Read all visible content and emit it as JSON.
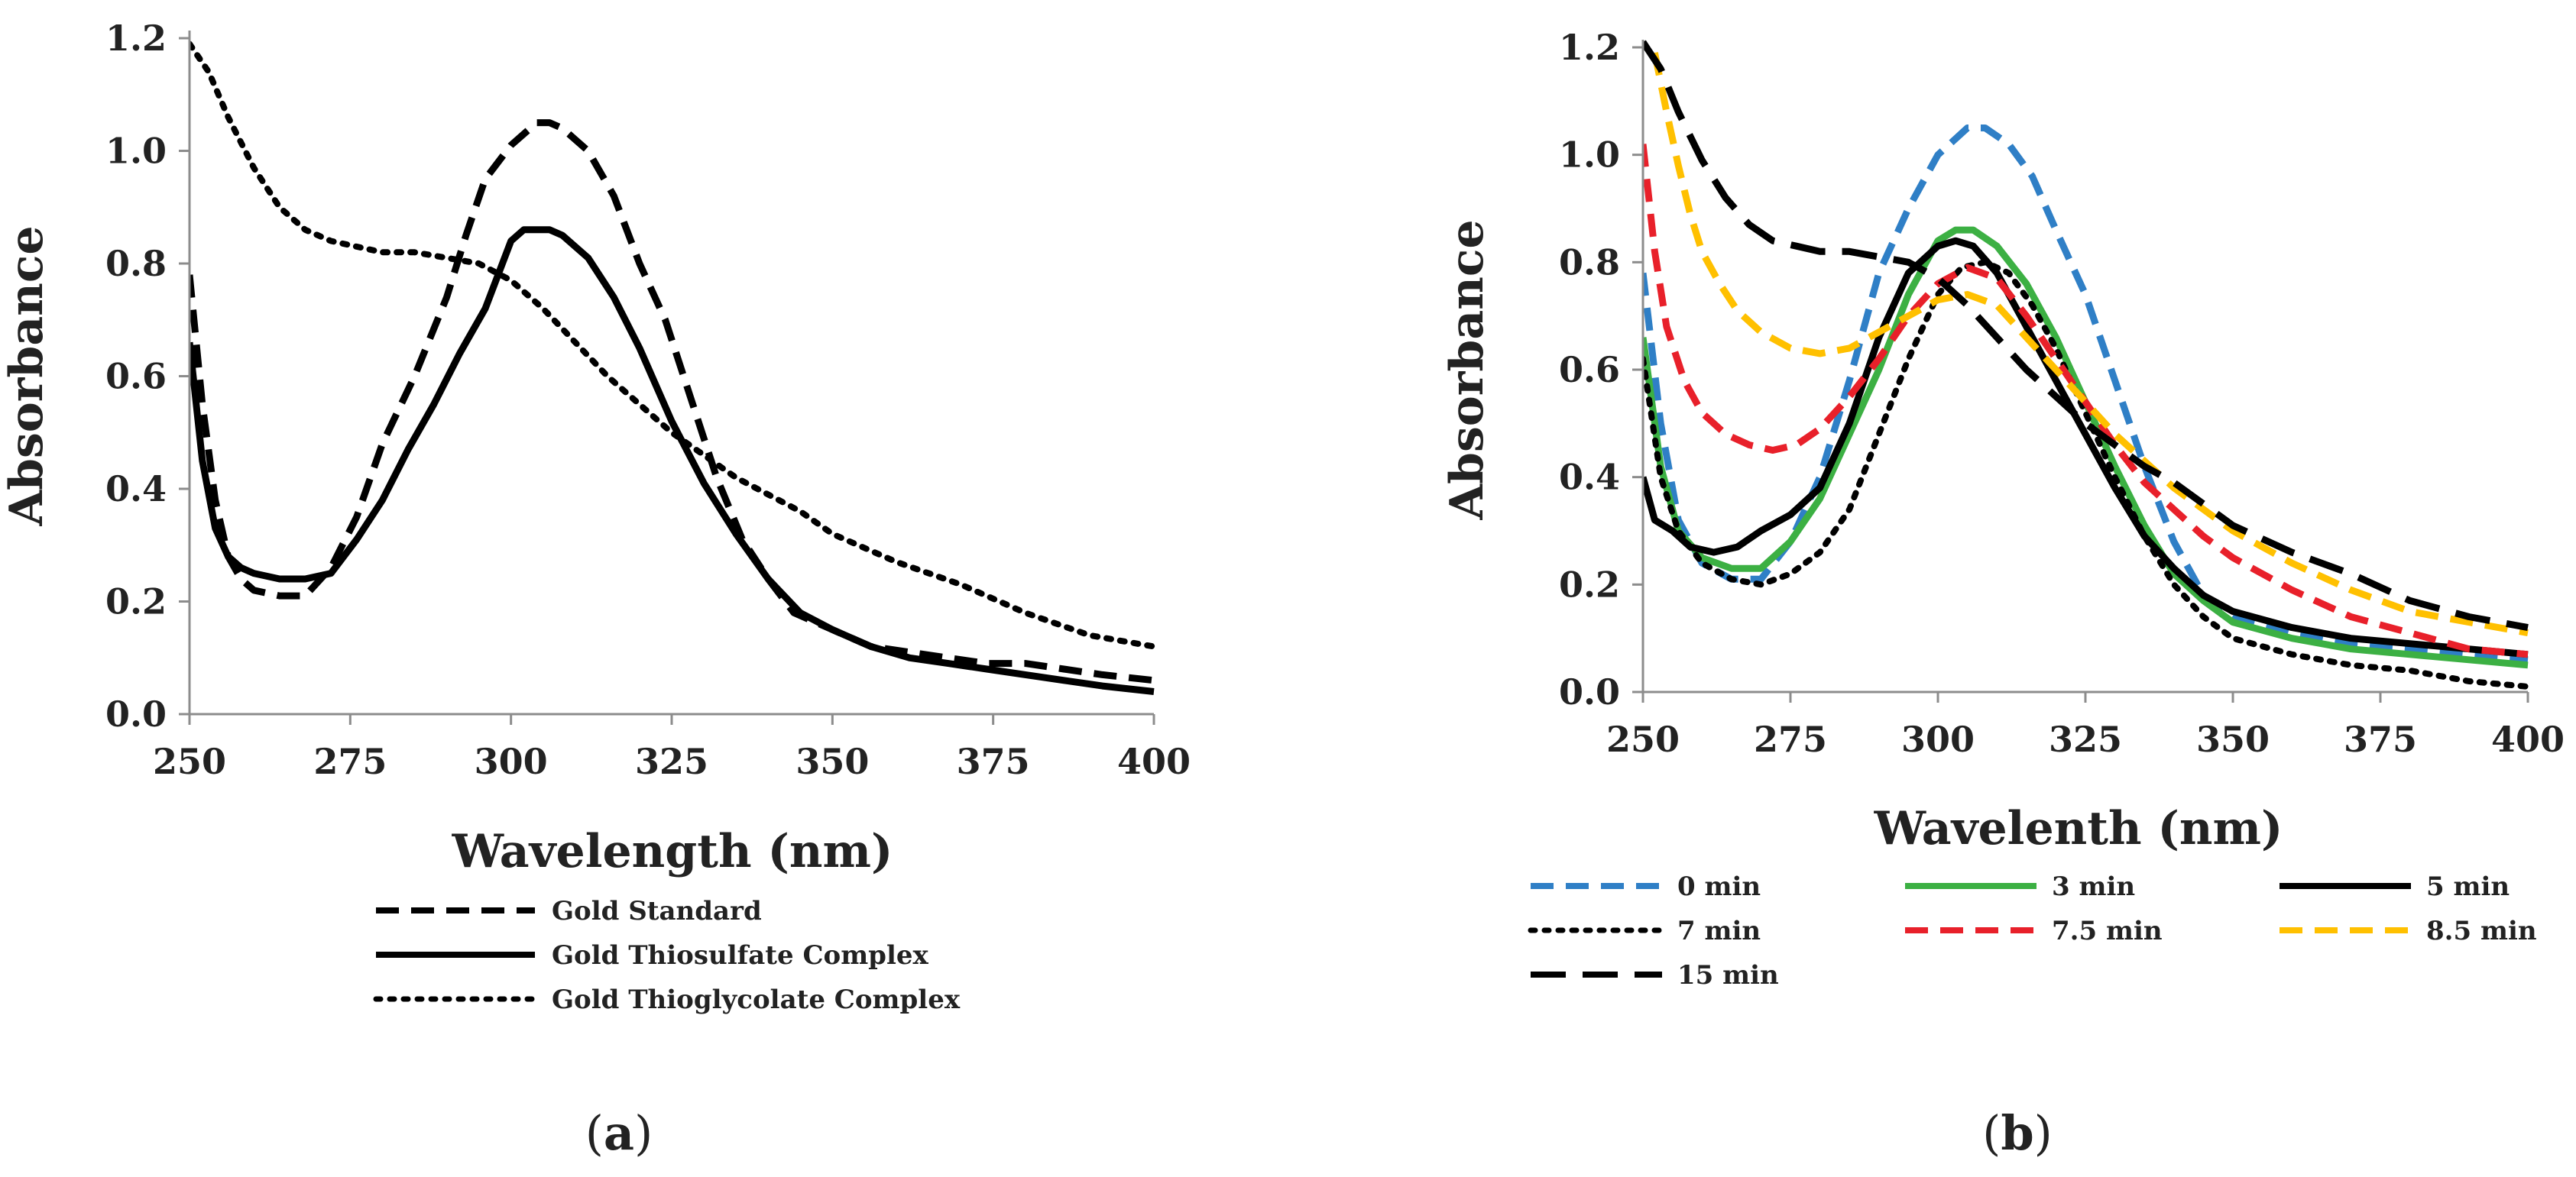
{
  "chart_data": [
    {
      "type": "line",
      "panel_label_pre": "(",
      "panel_label_letter": "a",
      "panel_label_post": ")",
      "xlabel": "Wavelength (nm)",
      "ylabel": "Absorbance",
      "xlim": [
        250,
        400
      ],
      "ylim": [
        0,
        1.2
      ],
      "xticks": [
        250,
        275,
        300,
        325,
        350,
        375,
        400
      ],
      "xtick_labels": [
        "250",
        "275",
        "300",
        "325",
        "350",
        "375",
        "400"
      ],
      "yticks": [
        0,
        0.2,
        0.4,
        0.6,
        0.8,
        1.0,
        1.2
      ],
      "ytick_labels": [
        "0.0",
        "0.2",
        "0.4",
        "0.6",
        "0.8",
        "1.0",
        "1.2"
      ],
      "grid": false,
      "legend_position": "bottom",
      "series": [
        {
          "name": "Gold Standard",
          "color": "#000000",
          "style": "dashed",
          "x": [
            250,
            252,
            254,
            256,
            258,
            260,
            264,
            268,
            272,
            276,
            280,
            285,
            290,
            293,
            296,
            300,
            304,
            306,
            308,
            312,
            316,
            320,
            324,
            328,
            332,
            336,
            340,
            344,
            350,
            356,
            362,
            368,
            374,
            380,
            386,
            392,
            400
          ],
          "y": [
            0.78,
            0.55,
            0.38,
            0.28,
            0.24,
            0.22,
            0.21,
            0.21,
            0.26,
            0.35,
            0.48,
            0.6,
            0.74,
            0.85,
            0.95,
            1.01,
            1.05,
            1.05,
            1.04,
            1.0,
            0.92,
            0.8,
            0.7,
            0.56,
            0.42,
            0.31,
            0.24,
            0.18,
            0.15,
            0.12,
            0.11,
            0.1,
            0.09,
            0.09,
            0.08,
            0.07,
            0.06
          ]
        },
        {
          "name": "Gold Thiosulfate Complex",
          "color": "#000000",
          "style": "solid",
          "x": [
            250,
            252,
            254,
            256,
            258,
            260,
            264,
            268,
            272,
            276,
            280,
            284,
            288,
            292,
            296,
            300,
            302,
            304,
            306,
            308,
            312,
            316,
            320,
            325,
            330,
            335,
            340,
            345,
            350,
            356,
            362,
            368,
            374,
            380,
            386,
            392,
            400
          ],
          "y": [
            0.66,
            0.45,
            0.33,
            0.28,
            0.26,
            0.25,
            0.24,
            0.24,
            0.25,
            0.31,
            0.38,
            0.47,
            0.55,
            0.64,
            0.72,
            0.84,
            0.86,
            0.86,
            0.86,
            0.85,
            0.81,
            0.74,
            0.65,
            0.52,
            0.41,
            0.32,
            0.24,
            0.18,
            0.15,
            0.12,
            0.1,
            0.09,
            0.08,
            0.07,
            0.06,
            0.05,
            0.04
          ]
        },
        {
          "name": "Gold Thioglycolate Complex",
          "color": "#000000",
          "style": "dotted",
          "x": [
            250,
            253,
            256,
            260,
            264,
            268,
            272,
            276,
            280,
            285,
            290,
            295,
            300,
            305,
            310,
            315,
            320,
            325,
            330,
            335,
            340,
            345,
            350,
            360,
            370,
            380,
            390,
            400
          ],
          "y": [
            1.19,
            1.14,
            1.06,
            0.97,
            0.9,
            0.86,
            0.84,
            0.83,
            0.82,
            0.82,
            0.81,
            0.8,
            0.77,
            0.72,
            0.66,
            0.6,
            0.55,
            0.5,
            0.46,
            0.42,
            0.39,
            0.36,
            0.32,
            0.27,
            0.23,
            0.18,
            0.14,
            0.12
          ]
        }
      ]
    },
    {
      "type": "line",
      "panel_label_pre": "(",
      "panel_label_letter": "b",
      "panel_label_post": ")",
      "xlabel": "Wavelenth (nm)",
      "ylabel": "Absorbance",
      "xlim": [
        250,
        400
      ],
      "ylim": [
        0,
        1.2
      ],
      "xticks": [
        250,
        275,
        300,
        325,
        350,
        375,
        400
      ],
      "xtick_labels": [
        "250",
        "275",
        "300",
        "325",
        "350",
        "375",
        "400"
      ],
      "yticks": [
        0,
        0.2,
        0.4,
        0.6,
        0.8,
        1.0,
        1.2
      ],
      "ytick_labels": [
        "0.0",
        "0.2",
        "0.4",
        "0.6",
        "0.8",
        "1.0",
        "1.2"
      ],
      "grid": false,
      "legend_position": "bottom",
      "series": [
        {
          "name": "0 min",
          "color": "#2F7FC6",
          "style": "dashed",
          "x": [
            250,
            253,
            256,
            260,
            265,
            270,
            275,
            280,
            285,
            290,
            295,
            300,
            305,
            308,
            312,
            316,
            320,
            325,
            330,
            335,
            340,
            345,
            350,
            360,
            370,
            380,
            390,
            400
          ],
          "y": [
            0.78,
            0.5,
            0.32,
            0.24,
            0.21,
            0.21,
            0.28,
            0.4,
            0.58,
            0.78,
            0.9,
            1.0,
            1.05,
            1.05,
            1.02,
            0.96,
            0.86,
            0.74,
            0.58,
            0.42,
            0.28,
            0.18,
            0.14,
            0.11,
            0.09,
            0.08,
            0.07,
            0.06
          ]
        },
        {
          "name": "3 min",
          "color": "#3CB043",
          "style": "solid",
          "x": [
            250,
            253,
            256,
            260,
            265,
            270,
            275,
            280,
            285,
            290,
            295,
            300,
            303,
            306,
            310,
            315,
            320,
            325,
            330,
            335,
            340,
            345,
            350,
            360,
            370,
            380,
            390,
            400
          ],
          "y": [
            0.66,
            0.42,
            0.3,
            0.25,
            0.23,
            0.23,
            0.28,
            0.36,
            0.48,
            0.6,
            0.74,
            0.84,
            0.86,
            0.86,
            0.83,
            0.76,
            0.66,
            0.54,
            0.42,
            0.31,
            0.22,
            0.17,
            0.13,
            0.1,
            0.08,
            0.07,
            0.06,
            0.05
          ]
        },
        {
          "name": "5 min",
          "color": "#000000",
          "style": "solid",
          "x": [
            250,
            252,
            255,
            258,
            262,
            266,
            270,
            275,
            280,
            285,
            290,
            295,
            300,
            303,
            306,
            310,
            315,
            320,
            325,
            330,
            335,
            340,
            345,
            350,
            360,
            370,
            380,
            390,
            400
          ],
          "y": [
            0.4,
            0.32,
            0.3,
            0.27,
            0.26,
            0.27,
            0.3,
            0.33,
            0.38,
            0.5,
            0.66,
            0.78,
            0.83,
            0.84,
            0.83,
            0.78,
            0.68,
            0.58,
            0.48,
            0.38,
            0.29,
            0.23,
            0.18,
            0.15,
            0.12,
            0.1,
            0.09,
            0.08,
            0.07
          ]
        },
        {
          "name": "7 min",
          "color": "#000000",
          "style": "dotted",
          "x": [
            250,
            253,
            256,
            260,
            265,
            270,
            275,
            280,
            285,
            290,
            295,
            300,
            304,
            308,
            312,
            316,
            320,
            325,
            330,
            335,
            340,
            345,
            350,
            360,
            370,
            380,
            390,
            400
          ],
          "y": [
            0.62,
            0.4,
            0.3,
            0.24,
            0.21,
            0.2,
            0.22,
            0.26,
            0.34,
            0.48,
            0.62,
            0.74,
            0.79,
            0.8,
            0.78,
            0.72,
            0.64,
            0.52,
            0.4,
            0.29,
            0.2,
            0.14,
            0.1,
            0.07,
            0.05,
            0.04,
            0.02,
            0.01
          ]
        },
        {
          "name": "7.5 min",
          "color": "#E8202A",
          "style": "dashed",
          "x": [
            250,
            252,
            254,
            257,
            260,
            264,
            268,
            272,
            276,
            280,
            285,
            290,
            295,
            300,
            305,
            310,
            315,
            320,
            325,
            330,
            335,
            340,
            345,
            350,
            360,
            370,
            380,
            390,
            400
          ],
          "y": [
            1.02,
            0.82,
            0.68,
            0.58,
            0.52,
            0.48,
            0.46,
            0.45,
            0.46,
            0.49,
            0.55,
            0.62,
            0.7,
            0.76,
            0.79,
            0.77,
            0.7,
            0.62,
            0.54,
            0.46,
            0.39,
            0.34,
            0.29,
            0.25,
            0.19,
            0.14,
            0.11,
            0.08,
            0.07
          ]
        },
        {
          "name": "8.5 min",
          "color": "#FFC000",
          "style": "dashed",
          "x": [
            252,
            254,
            256,
            258,
            260,
            263,
            266,
            270,
            275,
            280,
            285,
            290,
            295,
            300,
            305,
            310,
            315,
            320,
            325,
            330,
            335,
            340,
            345,
            350,
            360,
            370,
            380,
            390,
            400
          ],
          "y": [
            1.19,
            1.08,
            0.98,
            0.89,
            0.82,
            0.76,
            0.71,
            0.67,
            0.64,
            0.63,
            0.64,
            0.67,
            0.7,
            0.73,
            0.74,
            0.72,
            0.66,
            0.6,
            0.54,
            0.48,
            0.43,
            0.38,
            0.34,
            0.3,
            0.24,
            0.19,
            0.15,
            0.13,
            0.11
          ]
        },
        {
          "name": "15 min",
          "color": "#000000",
          "style": "long-dashed",
          "x": [
            250,
            253,
            256,
            260,
            264,
            268,
            272,
            276,
            280,
            285,
            290,
            295,
            300,
            305,
            310,
            315,
            320,
            325,
            330,
            335,
            340,
            345,
            350,
            360,
            370,
            380,
            390,
            400
          ],
          "y": [
            1.21,
            1.16,
            1.08,
            0.99,
            0.92,
            0.87,
            0.84,
            0.83,
            0.82,
            0.82,
            0.81,
            0.8,
            0.77,
            0.72,
            0.66,
            0.6,
            0.55,
            0.5,
            0.46,
            0.42,
            0.39,
            0.35,
            0.31,
            0.26,
            0.22,
            0.17,
            0.14,
            0.12
          ]
        }
      ]
    }
  ]
}
